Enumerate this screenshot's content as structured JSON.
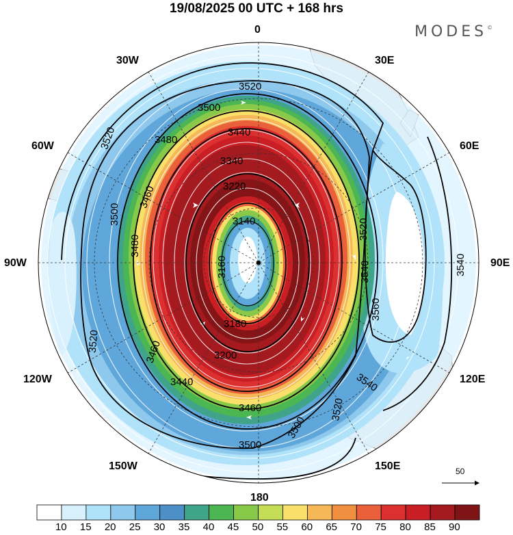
{
  "title": "19/08/2025  00 UTC  + 168 hrs",
  "brand": "MODES",
  "brand_mark": "©",
  "longitude_labels": {
    "lon_0": "0",
    "lon_30e": "30E",
    "lon_60e": "60E",
    "lon_90e": "90E",
    "lon_120e": "120E",
    "lon_150e": "150E",
    "lon_180": "180",
    "lon_150w": "150W",
    "lon_120w": "120W",
    "lon_90w": "90W",
    "lon_60w": "60W",
    "lon_30w": "30W"
  },
  "contour_labels": [
    "3520",
    "3500",
    "3480",
    "3440",
    "3340",
    "3460",
    "3220",
    "3140",
    "3160",
    "3180",
    "3200",
    "3500",
    "3480",
    "3460",
    "3440",
    "3520",
    "3540",
    "3560",
    "3540",
    "3520",
    "3500",
    "3460",
    "3500",
    "3520",
    "3540",
    "3520"
  ],
  "colorbar": {
    "ticks": [
      "10",
      "15",
      "20",
      "25",
      "30",
      "35",
      "40",
      "45",
      "50",
      "55",
      "60",
      "65",
      "70",
      "75",
      "80",
      "85",
      "90"
    ],
    "colors": [
      "#ffffff",
      "#d9f1fd",
      "#b0e2fa",
      "#8ec8ec",
      "#5fa7db",
      "#4d8fc7",
      "#40a48a",
      "#4cb752",
      "#88c94a",
      "#c4dd55",
      "#f8e06a",
      "#f6b756",
      "#f08f3f",
      "#e9603a",
      "#dc3030",
      "#c81e24",
      "#a51a1f",
      "#7f1416"
    ],
    "scale_value": "50"
  },
  "colors": {
    "land": "#e8e8e8",
    "ocean": "#ffffff",
    "contour": "#000000",
    "arrow": "#ffffff"
  }
}
